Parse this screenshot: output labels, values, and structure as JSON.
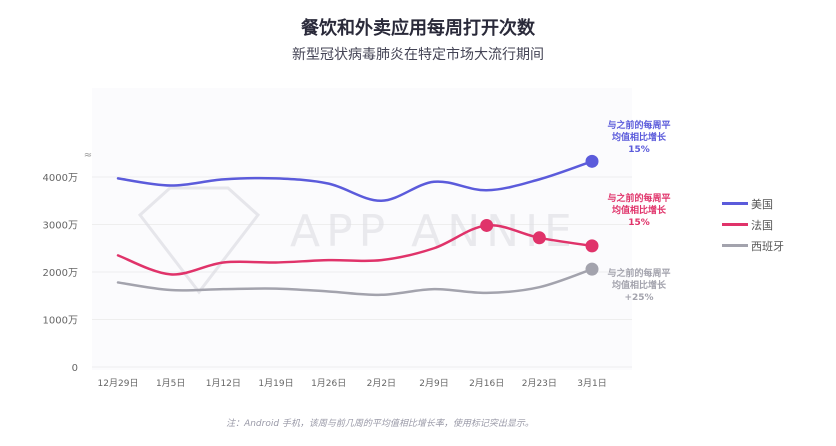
{
  "title": "餐饮和外卖应用每周打开次数",
  "subtitle": "新型冠状病毒肺炎在特定市场大流行期间",
  "footnote": "注：Android 手机，该周与前几周的平均值相比增长率，使用标记突出显示。",
  "watermark": "APP ANNIE",
  "colors": {
    "us": "#5b5bdb",
    "fr": "#e0336a",
    "es": "#a3a3ad",
    "grid": "#eeeeee"
  },
  "chart_data": {
    "type": "line",
    "y_unit": "万",
    "ylim": [
      0,
      5000
    ],
    "yticks": [
      "0",
      "1000万",
      "2000万",
      "3000万",
      "4000万"
    ],
    "x_tick_labels": [
      "12月29日",
      "1月5日",
      "1月12日",
      "1月19日",
      "1月26日",
      "2月2日",
      "2月9日",
      "2月16日",
      "2月23日",
      "3月1日"
    ],
    "x": [
      0,
      1,
      2,
      3,
      4,
      5,
      6,
      7,
      8,
      9
    ],
    "series": [
      {
        "name": "美国",
        "color": "#5b5bdb",
        "values": [
          3970,
          3820,
          3950,
          3970,
          3860,
          3500,
          3900,
          3720,
          3950,
          4330
        ],
        "highlight": [
          9
        ]
      },
      {
        "name": "法国",
        "color": "#e0336a",
        "values": [
          2350,
          1950,
          2200,
          2200,
          2250,
          2250,
          2500,
          2980,
          2720,
          2550
        ],
        "highlight": [
          7,
          8,
          9
        ]
      },
      {
        "name": "西班牙",
        "color": "#a3a3ad",
        "values": [
          1780,
          1620,
          1640,
          1650,
          1590,
          1520,
          1640,
          1560,
          1680,
          2060
        ],
        "highlight": [
          9
        ]
      }
    ],
    "annotations": [
      {
        "series": "美国",
        "lines": [
          "与之前的每周平",
          "均值相比增长",
          "15%"
        ]
      },
      {
        "series": "法国",
        "lines": [
          "与之前的每周平",
          "均值相比增长",
          "15%"
        ]
      },
      {
        "series": "西班牙",
        "lines": [
          "与之前的每周平",
          "均值相比增长",
          "+25%"
        ]
      }
    ]
  }
}
